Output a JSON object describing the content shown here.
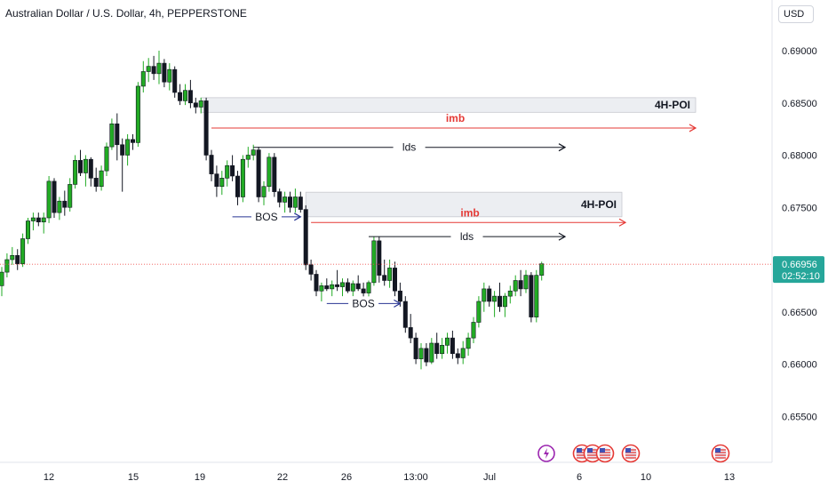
{
  "header": {
    "title": "Australian Dollar / U.S. Dollar, 4h, PEPPERSTONE",
    "currency": "USD"
  },
  "price_axis": {
    "ticks": [
      "0.69000",
      "0.68500",
      "0.68000",
      "0.67500",
      "0.67000",
      "0.66500",
      "0.66000",
      "0.65500"
    ],
    "current_price": "0.66956",
    "countdown": "02:52:10"
  },
  "time_axis": {
    "ticks": [
      "12",
      "15",
      "19",
      "22",
      "26",
      "13:00",
      "Jul",
      "6",
      "10",
      "13"
    ]
  },
  "annotations": {
    "poi_label": "4H-POI",
    "imb_label": "imb",
    "lds_label": "lds",
    "bos_label": "BOS"
  },
  "colors": {
    "bull": "#22ab24",
    "bear": "#131722",
    "imb": "#e53935",
    "bos": "#283593",
    "price_line": "#26a69a",
    "zone": "#eceef2"
  },
  "icons": [
    "lightning-event-icon",
    "us-flag-event-icon",
    "us-flag-event-icon",
    "us-flag-event-icon",
    "us-flag-event-icon",
    "us-flag-event-icon"
  ],
  "chart_data": {
    "type": "candlestick",
    "symbol": "AUDUSD",
    "timeframe": "4h",
    "ylim": [
      0.6525,
      0.6925
    ],
    "ohlc": [
      [
        0.6675,
        0.6693,
        0.6665,
        0.6688
      ],
      [
        0.6688,
        0.6706,
        0.6683,
        0.67
      ],
      [
        0.67,
        0.6712,
        0.6695,
        0.6704
      ],
      [
        0.6704,
        0.671,
        0.669,
        0.6696
      ],
      [
        0.6696,
        0.6725,
        0.6693,
        0.672
      ],
      [
        0.672,
        0.674,
        0.6715,
        0.6737
      ],
      [
        0.6737,
        0.6745,
        0.6728,
        0.674
      ],
      [
        0.674,
        0.6745,
        0.6732,
        0.6736
      ],
      [
        0.6736,
        0.6745,
        0.6725,
        0.674
      ],
      [
        0.674,
        0.678,
        0.6735,
        0.6775
      ],
      [
        0.6775,
        0.6778,
        0.674,
        0.6745
      ],
      [
        0.6745,
        0.676,
        0.6738,
        0.6756
      ],
      [
        0.6756,
        0.6766,
        0.6742,
        0.675
      ],
      [
        0.675,
        0.6778,
        0.6746,
        0.6772
      ],
      [
        0.6772,
        0.68,
        0.6768,
        0.6795
      ],
      [
        0.6795,
        0.6805,
        0.678,
        0.6783
      ],
      [
        0.6783,
        0.68,
        0.677,
        0.6796
      ],
      [
        0.6796,
        0.6798,
        0.677,
        0.6778
      ],
      [
        0.6778,
        0.6788,
        0.6765,
        0.677
      ],
      [
        0.677,
        0.679,
        0.6766,
        0.6785
      ],
      [
        0.6785,
        0.6812,
        0.678,
        0.6808
      ],
      [
        0.6808,
        0.6835,
        0.6805,
        0.683
      ],
      [
        0.683,
        0.684,
        0.6795,
        0.681
      ],
      [
        0.681,
        0.6816,
        0.6765,
        0.68
      ],
      [
        0.68,
        0.682,
        0.679,
        0.6815
      ],
      [
        0.6815,
        0.682,
        0.6805,
        0.6812
      ],
      [
        0.6812,
        0.687,
        0.6808,
        0.6866
      ],
      [
        0.6866,
        0.689,
        0.686,
        0.688
      ],
      [
        0.688,
        0.6893,
        0.687,
        0.6885
      ],
      [
        0.6885,
        0.6895,
        0.6872,
        0.6878
      ],
      [
        0.6878,
        0.69,
        0.6868,
        0.6888
      ],
      [
        0.6888,
        0.6892,
        0.6865,
        0.687
      ],
      [
        0.687,
        0.6888,
        0.6862,
        0.6882
      ],
      [
        0.6882,
        0.6885,
        0.6855,
        0.686
      ],
      [
        0.686,
        0.6868,
        0.6848,
        0.6852
      ],
      [
        0.6852,
        0.6868,
        0.6848,
        0.6862
      ],
      [
        0.6862,
        0.6872,
        0.6845,
        0.685
      ],
      [
        0.685,
        0.6855,
        0.684,
        0.6846
      ],
      [
        0.6846,
        0.6855,
        0.684,
        0.6852
      ],
      [
        0.6852,
        0.6855,
        0.6795,
        0.68
      ],
      [
        0.68,
        0.6805,
        0.6775,
        0.6782
      ],
      [
        0.6782,
        0.679,
        0.676,
        0.677
      ],
      [
        0.677,
        0.6785,
        0.6762,
        0.6778
      ],
      [
        0.6778,
        0.6795,
        0.677,
        0.679
      ],
      [
        0.679,
        0.68,
        0.6775,
        0.678
      ],
      [
        0.678,
        0.6785,
        0.6752,
        0.676
      ],
      [
        0.676,
        0.68,
        0.6755,
        0.6796
      ],
      [
        0.6796,
        0.6808,
        0.6788,
        0.68
      ],
      [
        0.68,
        0.681,
        0.6795,
        0.6805
      ],
      [
        0.6805,
        0.6808,
        0.6755,
        0.676
      ],
      [
        0.676,
        0.6775,
        0.6752,
        0.677
      ],
      [
        0.677,
        0.6802,
        0.6765,
        0.6798
      ],
      [
        0.6798,
        0.6802,
        0.676,
        0.6765
      ],
      [
        0.6765,
        0.6768,
        0.675,
        0.6755
      ],
      [
        0.6755,
        0.6765,
        0.6745,
        0.676
      ],
      [
        0.676,
        0.6765,
        0.6745,
        0.675
      ],
      [
        0.675,
        0.6768,
        0.6745,
        0.676
      ],
      [
        0.676,
        0.6765,
        0.6745,
        0.6748
      ],
      [
        0.6748,
        0.6752,
        0.669,
        0.6695
      ],
      [
        0.6695,
        0.67,
        0.668,
        0.6686
      ],
      [
        0.6686,
        0.669,
        0.6665,
        0.667
      ],
      [
        0.667,
        0.6678,
        0.666,
        0.6675
      ],
      [
        0.6675,
        0.6682,
        0.667,
        0.6672
      ],
      [
        0.6672,
        0.668,
        0.6665,
        0.6676
      ],
      [
        0.6676,
        0.669,
        0.667,
        0.6674
      ],
      [
        0.6674,
        0.6682,
        0.6665,
        0.6678
      ],
      [
        0.6678,
        0.6682,
        0.6668,
        0.667
      ],
      [
        0.667,
        0.668,
        0.6665,
        0.6677
      ],
      [
        0.6677,
        0.6685,
        0.667,
        0.6672
      ],
      [
        0.6672,
        0.6678,
        0.6663,
        0.6668
      ],
      [
        0.6668,
        0.668,
        0.6663,
        0.6678
      ],
      [
        0.6678,
        0.6722,
        0.6675,
        0.6718
      ],
      [
        0.6718,
        0.6722,
        0.6678,
        0.6685
      ],
      [
        0.6685,
        0.67,
        0.6675,
        0.668
      ],
      [
        0.668,
        0.67,
        0.6673,
        0.6692
      ],
      [
        0.6692,
        0.6698,
        0.6665,
        0.667
      ],
      [
        0.667,
        0.6678,
        0.6655,
        0.666
      ],
      [
        0.666,
        0.6665,
        0.663,
        0.6635
      ],
      [
        0.6635,
        0.6648,
        0.662,
        0.6625
      ],
      [
        0.6625,
        0.663,
        0.66,
        0.6605
      ],
      [
        0.6605,
        0.662,
        0.6595,
        0.6615
      ],
      [
        0.6615,
        0.662,
        0.6598,
        0.6602
      ],
      [
        0.6602,
        0.6625,
        0.66,
        0.662
      ],
      [
        0.662,
        0.663,
        0.6605,
        0.661
      ],
      [
        0.661,
        0.6625,
        0.6605,
        0.6618
      ],
      [
        0.6618,
        0.663,
        0.661,
        0.6625
      ],
      [
        0.6625,
        0.6632,
        0.6605,
        0.661
      ],
      [
        0.661,
        0.6615,
        0.66,
        0.6606
      ],
      [
        0.6606,
        0.6622,
        0.66,
        0.6615
      ],
      [
        0.6615,
        0.663,
        0.6608,
        0.6625
      ],
      [
        0.6625,
        0.6645,
        0.662,
        0.664
      ],
      [
        0.664,
        0.6665,
        0.6635,
        0.666
      ],
      [
        0.666,
        0.6678,
        0.665,
        0.6672
      ],
      [
        0.6672,
        0.6675,
        0.6655,
        0.666
      ],
      [
        0.666,
        0.667,
        0.6645,
        0.6665
      ],
      [
        0.6665,
        0.6678,
        0.665,
        0.6655
      ],
      [
        0.6655,
        0.6668,
        0.6645,
        0.6665
      ],
      [
        0.6665,
        0.6675,
        0.6658,
        0.667
      ],
      [
        0.667,
        0.6685,
        0.6665,
        0.668
      ],
      [
        0.668,
        0.669,
        0.6665,
        0.6672
      ],
      [
        0.6672,
        0.669,
        0.6668,
        0.6685
      ],
      [
        0.6685,
        0.6688,
        0.664,
        0.6645
      ],
      [
        0.6645,
        0.669,
        0.664,
        0.6685
      ],
      [
        0.6685,
        0.6698,
        0.668,
        0.6696
      ]
    ],
    "last_price": 0.66956,
    "zones": [
      {
        "label": "4H-POI",
        "top": 0.6855,
        "bottom": 0.6841,
        "start_index": 38
      },
      {
        "label": "4H-POI",
        "top": 0.67645,
        "bottom": 0.6741,
        "start_index": 58
      }
    ],
    "levels": [
      {
        "label": "imb",
        "price": 0.6826,
        "start_index": 40,
        "color": "#e53935"
      },
      {
        "label": "lds",
        "price": 0.68075,
        "start_index": 48,
        "color": "#131722"
      },
      {
        "label": "imb",
        "price": 0.67355,
        "start_index": 59,
        "color": "#e53935"
      },
      {
        "label": "lds",
        "price": 0.6722,
        "start_index": 70,
        "color": "#131722"
      }
    ],
    "bos": [
      {
        "label": "BOS",
        "price": 0.6741,
        "from_index": 44,
        "to_index": 57
      },
      {
        "label": "BOS",
        "price": 0.6658,
        "from_index": 62,
        "to_index": 76
      }
    ]
  }
}
